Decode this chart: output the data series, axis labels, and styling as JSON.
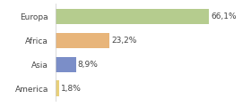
{
  "categories": [
    "Europa",
    "Africa",
    "Asia",
    "America"
  ],
  "values": [
    66.1,
    23.2,
    8.9,
    1.8
  ],
  "labels": [
    "66,1%",
    "23,2%",
    "8,9%",
    "1,8%"
  ],
  "bar_colors": [
    "#b5cc8e",
    "#e8b57a",
    "#7b8ec8",
    "#e8d07a"
  ],
  "background_color": "#ffffff",
  "xlim": [
    0,
    82
  ],
  "label_fontsize": 6.5,
  "tick_fontsize": 6.5,
  "bar_height": 0.65
}
